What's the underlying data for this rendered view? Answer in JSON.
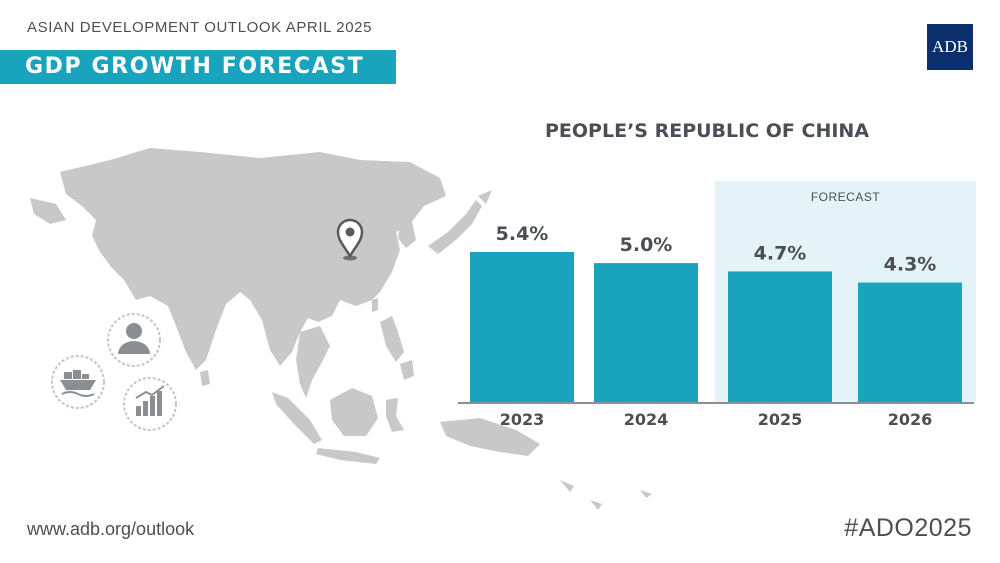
{
  "header": {
    "supertitle": "ASIAN DEVELOPMENT OUTLOOK APRIL 2025",
    "title": "GDP GROWTH FORECAST",
    "logo_text": "ADB"
  },
  "chart_data": {
    "type": "bar",
    "title": "PEOPLE’S REPUBLIC OF CHINA",
    "categories": [
      "2023",
      "2024",
      "2025",
      "2026"
    ],
    "values": [
      5.4,
      5.0,
      4.7,
      4.3
    ],
    "labels": [
      "5.4%",
      "5.0%",
      "4.7%",
      "4.3%"
    ],
    "forecast_label": "FORECAST",
    "forecast_categories": [
      "2025",
      "2026"
    ],
    "ylim": [
      0,
      5.4
    ],
    "grid": false,
    "xlabel": "",
    "ylabel": ""
  },
  "footer": {
    "url": "www.adb.org/outlook",
    "hashtag": "#ADO2025"
  },
  "colors": {
    "bar": "#1aa3bd",
    "forecast_bg": "#e4f3f8",
    "title_bar": "#1aa3bd",
    "logo": "#0b2f6b",
    "map": "#c8c8c8",
    "text": "#4a4f55"
  },
  "icons": [
    "map-pin-icon",
    "person-icon",
    "ship-icon",
    "growth-chart-icon"
  ]
}
